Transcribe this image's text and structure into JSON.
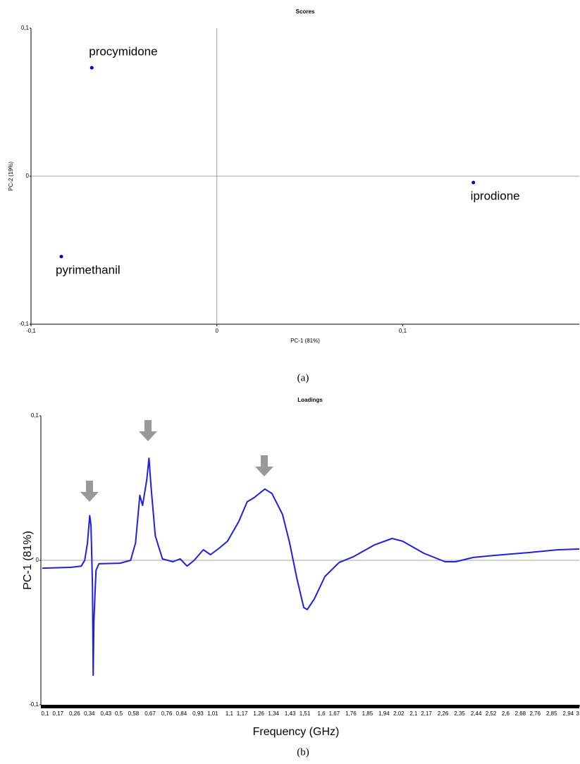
{
  "chart_data": [
    {
      "type": "scatter",
      "title": "Scores",
      "x_label": "PC-1 (81%)",
      "y_label": "PC-2 (19%)",
      "x": [
        -0.0673,
        0.138,
        -0.0837
      ],
      "values": [
        0.0733,
        -0.0043,
        -0.0543
      ],
      "point_labels": [
        "procymidone",
        "iprodione",
        "pyrimethanil"
      ],
      "color": "#0000cc",
      "xlim": [
        -0.1,
        0.195
      ],
      "ylim": [
        -0.1,
        0.1
      ],
      "xticks": [
        {
          "value": -0.1,
          "label": "-0,1"
        },
        0,
        {
          "value": 0.1,
          "label": "0,1"
        }
      ],
      "yticks": [
        {
          "value": -0.1,
          "label": "-0,1"
        },
        0,
        {
          "value": 0.1,
          "label": "0,1"
        }
      ],
      "caption": "(a)"
    },
    {
      "type": "line",
      "title": "Loadings",
      "x_label": "Frequency (GHz)",
      "y_label": "PC-1 (81%)",
      "color": "#2020e0",
      "x": [
        0.085,
        0.238,
        0.296,
        0.315,
        0.33,
        0.342,
        0.349,
        0.357,
        0.361,
        0.365,
        0.376,
        0.392,
        0.507,
        0.564,
        0.591,
        0.614,
        0.629,
        0.652,
        0.664,
        0.675,
        0.698,
        0.737,
        0.794,
        0.833,
        0.871,
        0.909,
        0.959,
        0.998,
        1.044,
        1.09,
        1.151,
        1.197,
        1.235,
        1.293,
        1.331,
        1.389,
        1.427,
        1.466,
        1.504,
        1.523,
        1.561,
        1.619,
        1.696,
        1.772,
        1.888,
        1.984,
        2.041,
        2.156,
        2.271,
        2.329,
        2.425,
        2.54,
        2.731,
        2.885,
        3.0
      ],
      "values": [
        -0.0054,
        -0.0049,
        -0.004,
        0,
        0.012,
        0.031,
        0.024,
        -0.017,
        -0.0795,
        -0.041,
        -0.007,
        -0.0024,
        -0.002,
        0,
        0.012,
        0.045,
        0.038,
        0.056,
        0.0707,
        0.051,
        0.017,
        0.001,
        -0.001,
        0.001,
        -0.004,
        0,
        0.0073,
        0.0039,
        0.0083,
        0.0132,
        0.0268,
        0.0405,
        0.0434,
        0.0493,
        0.0463,
        0.0317,
        0.0122,
        -0.0122,
        -0.0327,
        -0.0341,
        -0.0268,
        -0.0112,
        -0.0015,
        0.0024,
        0.0107,
        0.0151,
        0.0132,
        0.0049,
        -0.001,
        -0.001,
        0.002,
        0.0034,
        0.0054,
        0.0073,
        0.0078
      ],
      "xlim": [
        0.077,
        3.0
      ],
      "ylim": [
        -0.1,
        0.1
      ],
      "xticks": [
        {
          "value": 0.1,
          "label": "0,1"
        },
        {
          "value": 0.17,
          "label": "0,17"
        },
        {
          "value": 0.26,
          "label": "0,26"
        },
        {
          "value": 0.34,
          "label": "0,34"
        },
        {
          "value": 0.43,
          "label": "0,43"
        },
        {
          "value": 0.5,
          "label": "0,5"
        },
        {
          "value": 0.58,
          "label": "0,58"
        },
        {
          "value": 0.67,
          "label": "0,67"
        },
        {
          "value": 0.76,
          "label": "0,76"
        },
        {
          "value": 0.84,
          "label": "0,84"
        },
        {
          "value": 0.93,
          "label": "0,93"
        },
        {
          "value": 1.01,
          "label": "1,01"
        },
        {
          "value": 1.1,
          "label": "1,1"
        },
        {
          "value": 1.17,
          "label": "1,17"
        },
        {
          "value": 1.26,
          "label": "1,26"
        },
        {
          "value": 1.34,
          "label": "1,34"
        },
        {
          "value": 1.43,
          "label": "1,43"
        },
        {
          "value": 1.51,
          "label": "1,51"
        },
        {
          "value": 1.6,
          "label": "1,6"
        },
        {
          "value": 1.67,
          "label": "1,67"
        },
        {
          "value": 1.76,
          "label": "1,76"
        },
        {
          "value": 1.85,
          "label": "1,85"
        },
        {
          "value": 1.94,
          "label": "1,94"
        },
        {
          "value": 2.02,
          "label": "2,02"
        },
        {
          "value": 2.1,
          "label": "2,1"
        },
        {
          "value": 2.17,
          "label": "2,17"
        },
        {
          "value": 2.26,
          "label": "2,26"
        },
        {
          "value": 2.35,
          "label": "2,35"
        },
        {
          "value": 2.44,
          "label": "2,44"
        },
        {
          "value": 2.52,
          "label": "2,52"
        },
        {
          "value": 2.6,
          "label": "2,6"
        },
        {
          "value": 2.68,
          "label": "2,68"
        },
        {
          "value": 2.76,
          "label": "2,76"
        },
        {
          "value": 2.85,
          "label": "2,85"
        },
        {
          "value": 2.94,
          "label": "2,94"
        },
        3
      ],
      "yticks": [
        {
          "value": -0.1,
          "label": "-0,1"
        },
        0,
        {
          "value": 0.1,
          "label": "0,1"
        }
      ],
      "caption": "(b)"
    }
  ]
}
